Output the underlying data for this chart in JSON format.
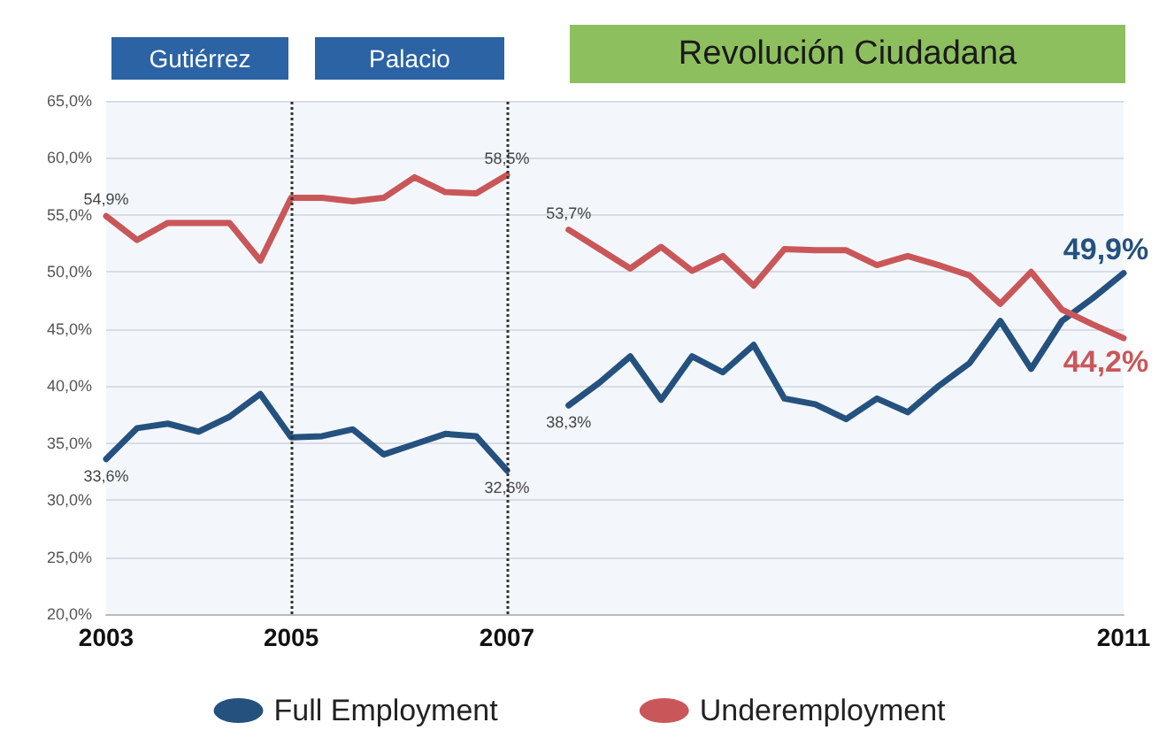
{
  "chart_data": {
    "type": "line",
    "categories": [
      "2003",
      null,
      null,
      null,
      null,
      null,
      "2005",
      null,
      null,
      null,
      null,
      null,
      null,
      "2007",
      null,
      null,
      null,
      null,
      null,
      null,
      null,
      null,
      null,
      null,
      null,
      null,
      null,
      null,
      null,
      null,
      null,
      null,
      null,
      "2011"
    ],
    "series": [
      {
        "name": "Full Employment",
        "color": "#25517f",
        "values": [
          33.6,
          36.3,
          36.7,
          36.0,
          37.3,
          39.3,
          35.5,
          35.6,
          36.2,
          34.0,
          34.9,
          35.8,
          35.6,
          32.6,
          null,
          38.3,
          40.3,
          42.6,
          38.8,
          42.6,
          41.2,
          43.6,
          38.9,
          38.4,
          37.1,
          38.9,
          37.7,
          40.0,
          42.0,
          45.7,
          41.5,
          45.7,
          47.7,
          49.9
        ],
        "value_labels": [
          "33,6%",
          null,
          null,
          null,
          null,
          null,
          null,
          null,
          null,
          null,
          null,
          null,
          null,
          "32,6%",
          null,
          "38,3%",
          null,
          null,
          null,
          null,
          null,
          null,
          null,
          null,
          null,
          null,
          null,
          null,
          null,
          null,
          null,
          null,
          null,
          "49,9%"
        ]
      },
      {
        "name": "Underemployment",
        "color": "#c9575a",
        "values": [
          54.9,
          52.8,
          54.3,
          54.3,
          54.3,
          51.0,
          56.5,
          56.5,
          56.2,
          56.5,
          58.3,
          57.0,
          56.9,
          58.5,
          null,
          53.7,
          52.0,
          50.3,
          52.2,
          50.1,
          51.4,
          48.8,
          52.0,
          51.9,
          51.9,
          50.6,
          51.4,
          50.6,
          49.7,
          47.2,
          50.0,
          46.7,
          45.4,
          44.2
        ],
        "value_labels": [
          "54,9%",
          null,
          null,
          null,
          null,
          null,
          null,
          null,
          null,
          null,
          null,
          null,
          null,
          "58,5%",
          null,
          "53,7%",
          null,
          null,
          null,
          null,
          null,
          null,
          null,
          null,
          null,
          null,
          null,
          null,
          null,
          null,
          null,
          null,
          null,
          "44,2%"
        ]
      }
    ],
    "ylim": [
      20,
      65
    ],
    "yticks": [
      {
        "value": 20,
        "label": "20,0%"
      },
      {
        "value": 25,
        "label": "25,0%"
      },
      {
        "value": 30,
        "label": "30,0%"
      },
      {
        "value": 35,
        "label": "35,0%"
      },
      {
        "value": 40,
        "label": "40,0%"
      },
      {
        "value": 45,
        "label": "45,0%"
      },
      {
        "value": 50,
        "label": "50,0%"
      },
      {
        "value": 55,
        "label": "55,0%"
      },
      {
        "value": 60,
        "label": "60,0%"
      },
      {
        "value": 65,
        "label": "65,0%"
      }
    ],
    "ref_lines": [
      {
        "axis": "x",
        "value": "2005",
        "line_style": "dotted",
        "color": "#333333"
      },
      {
        "axis": "x",
        "value": "2007",
        "line_style": "dotted",
        "color": "#333333"
      }
    ],
    "annotations": [
      "Gutiérrez",
      "Palacio",
      "Revolución Ciudadana"
    ],
    "grid": "y",
    "legend": "bottom",
    "marker": "none",
    "line_style": "solid"
  }
}
